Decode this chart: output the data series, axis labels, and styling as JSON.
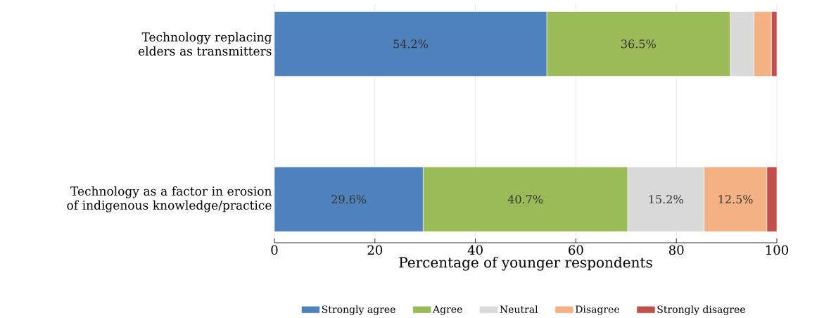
{
  "chart_data": {
    "type": "bar",
    "orientation": "horizontal",
    "stacked": true,
    "categories": [
      "Technology replacing elders as transmitters",
      "Technology as a factor in erosion of indigenous knowledge/practice"
    ],
    "series": [
      {
        "name": "Strongly agree",
        "color": "#4f81bd",
        "values": [
          54.2,
          29.6
        ],
        "value_labels": [
          "54.2%",
          "29.6%"
        ]
      },
      {
        "name": "Agree",
        "color": "#9bbb59",
        "values": [
          36.5,
          40.7
        ],
        "value_labels": [
          "36.5%",
          "40.7%"
        ]
      },
      {
        "name": "Neutral",
        "color": "#d9d9d9",
        "values": [
          4.7,
          15.2
        ],
        "value_labels": [
          null,
          "15.2%"
        ]
      },
      {
        "name": "Disagree",
        "color": "#f4b183",
        "values": [
          3.5,
          12.5
        ],
        "value_labels": [
          null,
          "12.5%"
        ]
      },
      {
        "name": "Strongly disagree",
        "color": "#c0504d",
        "values": [
          1.1,
          2.0
        ],
        "value_labels": [
          null,
          null
        ]
      }
    ],
    "xlabel": "Percentage of younger respondents",
    "xlim": [
      0,
      100
    ],
    "xticks": [
      0,
      20,
      40,
      60,
      80,
      100
    ],
    "grid": "x",
    "legend": "bottom"
  }
}
